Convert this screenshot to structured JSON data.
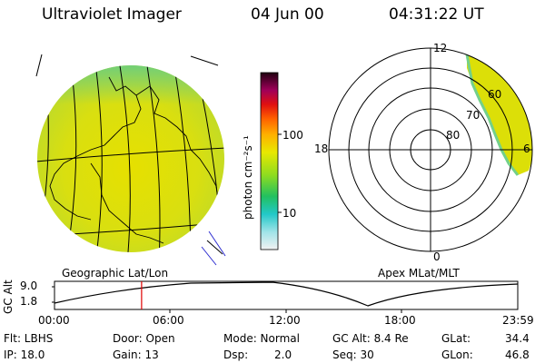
{
  "header": {
    "instrument": "Ultraviolet Imager",
    "date": "04 Jun 00",
    "time": "04:31:22 UT"
  },
  "colorbar": {
    "unit_label": "photon cm⁻²s⁻¹",
    "ticks": [
      "100",
      "10"
    ]
  },
  "left_panel": {
    "caption": "Geographic Lat/Lon"
  },
  "right_panel": {
    "caption": "Apex MLat/MLT",
    "mlt_labels": {
      "top": "12",
      "left": "18",
      "right": "6",
      "bottom": "0"
    },
    "mlat_labels": [
      "60",
      "70",
      "80"
    ]
  },
  "altitude_plot": {
    "ylabel": "GC Alt",
    "yticks": [
      "9.0",
      "1.8"
    ],
    "xticks": [
      "00:00",
      "06:00",
      "12:00",
      "18:00",
      "23:59"
    ],
    "current_time_fraction": 0.188
  },
  "info": {
    "flt": "Flt: LBHS",
    "ip": "IP: 18.0",
    "door": "Door: Open",
    "gain": "Gain: 13",
    "mode": "Mode: Normal",
    "dsp_label": "Dsp:",
    "dsp_value": "2.0",
    "gc_alt": "GC Alt: 8.4 Re",
    "seq": "Seq: 30",
    "glat_label": "GLat:",
    "glat_value": "34.4",
    "glon_label": "GLon:",
    "glon_value": "46.8"
  },
  "colors": {
    "red_marker": "#e00000",
    "map_line": "#000000",
    "blue_line": "#2c2cd0"
  }
}
